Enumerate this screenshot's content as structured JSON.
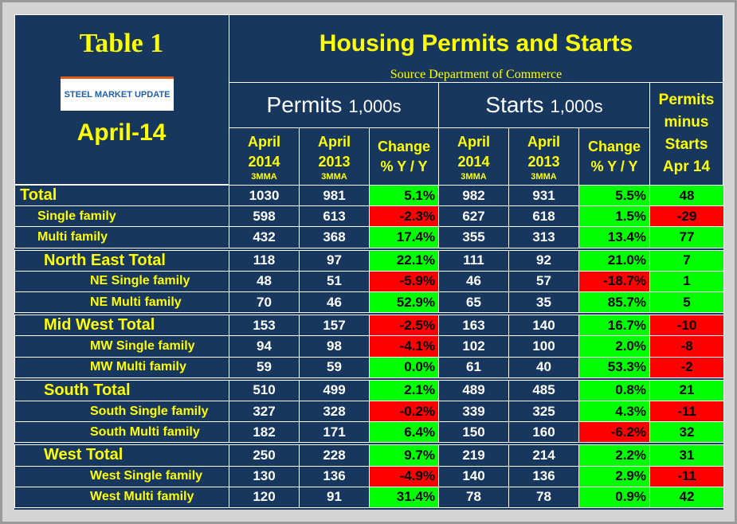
{
  "header": {
    "title": "Table 1",
    "logo": "STEEL MARKET UPDATE",
    "date": "April-14",
    "heading": "Housing Permits and Starts",
    "source": "Source Department of Commerce",
    "groups": [
      {
        "name": "Permits",
        "unit": "1,000s"
      },
      {
        "name": "Starts",
        "unit": "1,000s"
      }
    ],
    "columns": [
      {
        "month": "April",
        "year": "2014",
        "note": "3MMA"
      },
      {
        "month": "April",
        "year": "2013",
        "note": "3MMA"
      },
      {
        "line1": "Change",
        "line2": "% Y / Y"
      },
      {
        "month": "April",
        "year": "2014",
        "note": "3MMA"
      },
      {
        "month": "April",
        "year": "2013",
        "note": "3MMA"
      },
      {
        "line1": "Change",
        "line2": "% Y / Y"
      }
    ],
    "diff_header": [
      "Permits",
      "minus",
      "Starts",
      "Apr 14"
    ]
  },
  "table": {
    "groups": [
      {
        "rows": [
          {
            "label": "Total",
            "cells": [
              "1030",
              "981",
              "5.1%",
              "982",
              "931",
              "5.5%",
              "48"
            ]
          },
          {
            "label": "Single family",
            "cells": [
              "598",
              "613",
              "-2.3%",
              "627",
              "618",
              "1.5%",
              "-29"
            ]
          },
          {
            "label": "Multi family",
            "cells": [
              "432",
              "368",
              "17.4%",
              "355",
              "313",
              "13.4%",
              "77"
            ]
          }
        ]
      },
      {
        "rows": [
          {
            "label": "North East Total",
            "cells": [
              "118",
              "97",
              "22.1%",
              "111",
              "92",
              "21.0%",
              "7"
            ]
          },
          {
            "label": "NE Single family",
            "cells": [
              "48",
              "51",
              "-5.9%",
              "46",
              "57",
              "-18.7%",
              "1"
            ]
          },
          {
            "label": "NE Multi family",
            "cells": [
              "70",
              "46",
              "52.9%",
              "65",
              "35",
              "85.7%",
              "5"
            ]
          }
        ]
      },
      {
        "rows": [
          {
            "label": "Mid West Total",
            "cells": [
              "153",
              "157",
              "-2.5%",
              "163",
              "140",
              "16.7%",
              "-10"
            ]
          },
          {
            "label": "MW Single family",
            "cells": [
              "94",
              "98",
              "-4.1%",
              "102",
              "100",
              "2.0%",
              "-8"
            ]
          },
          {
            "label": "MW Multi family",
            "cells": [
              "59",
              "59",
              "0.0%",
              "61",
              "40",
              "53.3%",
              "-2"
            ]
          }
        ]
      },
      {
        "rows": [
          {
            "label": "South Total",
            "cells": [
              "510",
              "499",
              "2.1%",
              "489",
              "485",
              "0.8%",
              "21"
            ]
          },
          {
            "label": "South Single family",
            "cells": [
              "327",
              "328",
              "-0.2%",
              "339",
              "325",
              "4.3%",
              "-11"
            ]
          },
          {
            "label": "South Multi family",
            "cells": [
              "182",
              "171",
              "6.4%",
              "150",
              "160",
              "-6.2%",
              "32"
            ]
          }
        ]
      },
      {
        "rows": [
          {
            "label": "West Total",
            "cells": [
              "250",
              "228",
              "9.7%",
              "219",
              "214",
              "2.2%",
              "31"
            ]
          },
          {
            "label": "West Single family",
            "cells": [
              "130",
              "136",
              "-4.9%",
              "140",
              "136",
              "2.9%",
              "-11"
            ]
          },
          {
            "label": "West Multi family",
            "cells": [
              "120",
              "91",
              "31.4%",
              "78",
              "78",
              "0.9%",
              "42"
            ]
          }
        ]
      }
    ]
  }
}
